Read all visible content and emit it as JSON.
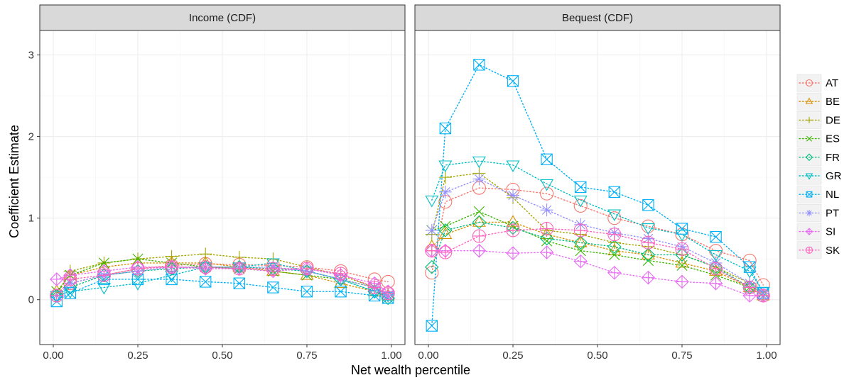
{
  "chart_data": {
    "type": "scatter",
    "xlabel": "Net wealth percentile",
    "ylabel": "Coefficient Estimate",
    "xlim": [
      -0.04,
      1.04
    ],
    "ylim": [
      -0.55,
      3.3
    ],
    "x_ticks": [
      "0.00",
      "0.25",
      "0.50",
      "0.75",
      "1.00"
    ],
    "x_tick_values": [
      0,
      0.25,
      0.5,
      0.75,
      1
    ],
    "y_ticks": [
      "0",
      "1",
      "2",
      "3"
    ],
    "y_tick_values": [
      0,
      1,
      2,
      3
    ],
    "grid": true,
    "legend_position": "right",
    "x": [
      0.01,
      0.05,
      0.15,
      0.25,
      0.35,
      0.45,
      0.55,
      0.65,
      0.75,
      0.85,
      0.95,
      0.99
    ],
    "legend": [
      "AT",
      "BE",
      "DE",
      "ES",
      "FR",
      "GR",
      "NL",
      "PT",
      "SI",
      "SK"
    ],
    "colors": {
      "AT": "#F8766D",
      "BE": "#D89000",
      "DE": "#A3A500",
      "ES": "#39B600",
      "FR": "#00BF7D",
      "GR": "#00BFC4",
      "NL": "#00B0F6",
      "PT": "#9590FF",
      "SI": "#E76BF3",
      "SK": "#FF62BC"
    },
    "shapes": {
      "AT": "circle",
      "BE": "triangle",
      "DE": "plus",
      "ES": "cross",
      "FR": "diamond",
      "GR": "triangle-down",
      "NL": "square-cross",
      "PT": "asterisk",
      "SI": "diamond-plus",
      "SK": "circle-plus"
    },
    "panels": [
      {
        "title": "Income (CDF)",
        "series": [
          {
            "name": "AT",
            "values": [
              0.05,
              0.2,
              0.3,
              0.38,
              0.42,
              0.44,
              0.43,
              0.42,
              0.4,
              0.35,
              0.25,
              0.22
            ]
          },
          {
            "name": "BE",
            "values": [
              0.1,
              0.3,
              0.4,
              0.45,
              0.45,
              0.45,
              0.4,
              0.35,
              0.3,
              0.2,
              0.1,
              0.05
            ]
          },
          {
            "name": "DE",
            "values": [
              0.05,
              0.35,
              0.45,
              0.5,
              0.53,
              0.56,
              0.52,
              0.5,
              0.4,
              0.3,
              0.15,
              0.05
            ]
          },
          {
            "name": "ES",
            "values": [
              0.1,
              0.3,
              0.45,
              0.5,
              0.45,
              0.4,
              0.38,
              0.35,
              0.3,
              0.25,
              0.15,
              0.05
            ]
          },
          {
            "name": "FR",
            "values": [
              0.05,
              0.15,
              0.3,
              0.35,
              0.38,
              0.4,
              0.4,
              0.38,
              0.35,
              0.25,
              0.1,
              0.02
            ]
          },
          {
            "name": "GR",
            "values": [
              0.05,
              0.1,
              0.15,
              0.2,
              0.3,
              0.4,
              0.4,
              0.45,
              0.35,
              0.25,
              0.1,
              0.05
            ]
          },
          {
            "name": "NL",
            "values": [
              -0.02,
              0.08,
              0.25,
              0.25,
              0.25,
              0.22,
              0.2,
              0.15,
              0.1,
              0.1,
              0.05,
              0.02
            ]
          },
          {
            "name": "PT",
            "values": [
              0.05,
              0.2,
              0.3,
              0.35,
              0.4,
              0.4,
              0.4,
              0.4,
              0.35,
              0.25,
              0.15,
              0.05
            ]
          },
          {
            "name": "SI",
            "values": [
              0.25,
              0.3,
              0.35,
              0.4,
              0.4,
              0.38,
              0.38,
              0.35,
              0.38,
              0.3,
              0.2,
              0.1
            ]
          },
          {
            "name": "SK",
            "values": [
              0.05,
              0.25,
              0.3,
              0.38,
              0.4,
              0.4,
              0.38,
              0.38,
              0.38,
              0.32,
              0.15,
              0.08
            ]
          }
        ]
      },
      {
        "title": "Bequest (CDF)",
        "series": [
          {
            "name": "AT",
            "values": [
              0.33,
              1.2,
              1.37,
              1.35,
              1.3,
              1.15,
              1.0,
              0.9,
              0.8,
              0.6,
              0.48,
              0.18
            ]
          },
          {
            "name": "BE",
            "values": [
              0.65,
              0.8,
              0.95,
              0.95,
              0.8,
              0.7,
              0.6,
              0.55,
              0.45,
              0.35,
              0.15,
              0.05
            ]
          },
          {
            "name": "DE",
            "values": [
              0.8,
              1.5,
              1.55,
              1.25,
              0.85,
              0.8,
              0.7,
              0.65,
              0.55,
              0.4,
              0.2,
              0.05
            ]
          },
          {
            "name": "ES",
            "values": [
              0.85,
              0.9,
              1.08,
              0.9,
              0.72,
              0.6,
              0.55,
              0.48,
              0.42,
              0.3,
              0.15,
              0.05
            ]
          },
          {
            "name": "FR",
            "values": [
              0.4,
              0.85,
              0.95,
              0.88,
              0.75,
              0.7,
              0.65,
              0.55,
              0.55,
              0.4,
              0.15,
              0.05
            ]
          },
          {
            "name": "GR",
            "values": [
              1.22,
              1.65,
              1.7,
              1.65,
              1.42,
              1.22,
              1.05,
              0.88,
              0.8,
              0.55,
              0.35,
              0.1
            ]
          },
          {
            "name": "NL",
            "values": [
              -0.32,
              2.1,
              2.88,
              2.68,
              1.72,
              1.38,
              1.32,
              1.16,
              0.87,
              0.77,
              0.4,
              0.08
            ]
          },
          {
            "name": "PT",
            "values": [
              0.85,
              1.32,
              1.48,
              1.28,
              1.1,
              0.92,
              0.82,
              0.75,
              0.65,
              0.45,
              0.2,
              0.05
            ]
          },
          {
            "name": "SI",
            "values": [
              0.6,
              0.6,
              0.6,
              0.57,
              0.58,
              0.47,
              0.33,
              0.27,
              0.22,
              0.2,
              0.05,
              0.05
            ]
          },
          {
            "name": "SK",
            "values": [
              0.6,
              0.58,
              0.78,
              0.85,
              0.87,
              0.85,
              0.8,
              0.7,
              0.62,
              0.38,
              0.15,
              0.05
            ]
          }
        ]
      }
    ]
  }
}
